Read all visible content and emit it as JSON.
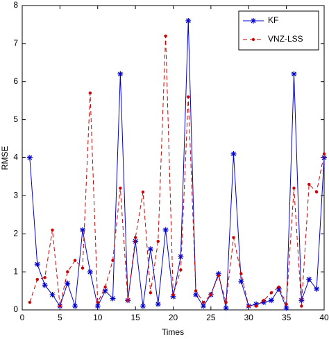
{
  "chart_data": {
    "type": "line",
    "xlabel": "Times",
    "ylabel": "RMSE",
    "x": [
      1,
      2,
      3,
      4,
      5,
      6,
      7,
      8,
      9,
      10,
      11,
      12,
      13,
      14,
      15,
      16,
      17,
      18,
      19,
      20,
      21,
      22,
      23,
      24,
      25,
      26,
      27,
      28,
      29,
      30,
      31,
      32,
      33,
      34,
      35,
      36,
      37,
      38,
      39,
      40
    ],
    "series": [
      {
        "name": "KF",
        "color": "#0000cc",
        "dash": false,
        "marker": "star",
        "values": [
          4.0,
          1.2,
          0.65,
          0.4,
          0.1,
          0.7,
          0.1,
          2.1,
          1.0,
          0.1,
          0.5,
          0.3,
          6.2,
          0.25,
          1.8,
          0.1,
          1.6,
          0.15,
          2.1,
          0.35,
          1.4,
          7.6,
          0.4,
          0.1,
          0.4,
          0.95,
          0.05,
          4.1,
          0.75,
          0.1,
          0.15,
          0.2,
          0.25,
          0.55,
          0.05,
          6.2,
          0.25,
          0.8,
          0.55,
          4.0
        ]
      },
      {
        "name": "VNZ-LSS",
        "color": "#cc0000",
        "dash": true,
        "marker": "dot",
        "values": [
          0.2,
          0.8,
          0.85,
          2.1,
          0.1,
          1.0,
          1.3,
          1.1,
          5.7,
          0.2,
          0.6,
          1.3,
          3.2,
          0.25,
          1.9,
          3.1,
          0.45,
          1.8,
          7.2,
          0.4,
          1.05,
          5.6,
          0.5,
          0.2,
          0.4,
          0.9,
          0.2,
          1.9,
          0.95,
          0.1,
          0.1,
          0.25,
          0.45,
          0.6,
          0.15,
          3.2,
          0.1,
          3.3,
          3.1,
          4.1
        ]
      }
    ],
    "xlim": [
      0,
      40
    ],
    "xticks": [
      0,
      5,
      10,
      15,
      20,
      25,
      30,
      35,
      40
    ],
    "ylim": [
      0,
      8
    ],
    "yticks": [
      0,
      1,
      2,
      3,
      4,
      5,
      6,
      7,
      8
    ],
    "legend": "upper right"
  }
}
